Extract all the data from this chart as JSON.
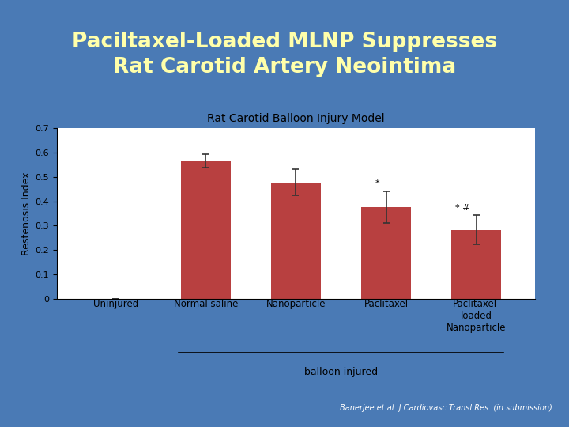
{
  "title_line1": "Paciltaxel-Loaded MLNP Suppresses",
  "title_line2": "Rat Carotid Artery Neointima",
  "title_color": "#FFFFAA",
  "title_bg_color": "#0d2a50",
  "slide_bg_color": "#4a7ab5",
  "chart_bg_color": "#f0f0f0",
  "sep_color1": "#7a1010",
  "sep_color2": "#d0c0c0",
  "chart_title": "Rat Carotid Balloon Injury Model",
  "ylabel": "Restenosis Index",
  "categories": [
    "Uninjured",
    "Normal saline",
    "Nanoparticle",
    "Paclitaxel",
    "Paclitaxel-\nloaded\nNanoparticle"
  ],
  "values": [
    0.0,
    0.565,
    0.478,
    0.377,
    0.282
  ],
  "errors": [
    0.0,
    0.028,
    0.055,
    0.065,
    0.06
  ],
  "bar_color": "#b84040",
  "ylim": [
    0,
    0.7
  ],
  "yticks": [
    0,
    0.1,
    0.2,
    0.3,
    0.4,
    0.5,
    0.6,
    0.7
  ],
  "ann_star_idx": 3,
  "ann_star_hash_idx": 4,
  "balloon_injured_label": "balloon injured",
  "footnote": "Banerjee et al. J Cardiovasc Transl Res. (in submission)"
}
